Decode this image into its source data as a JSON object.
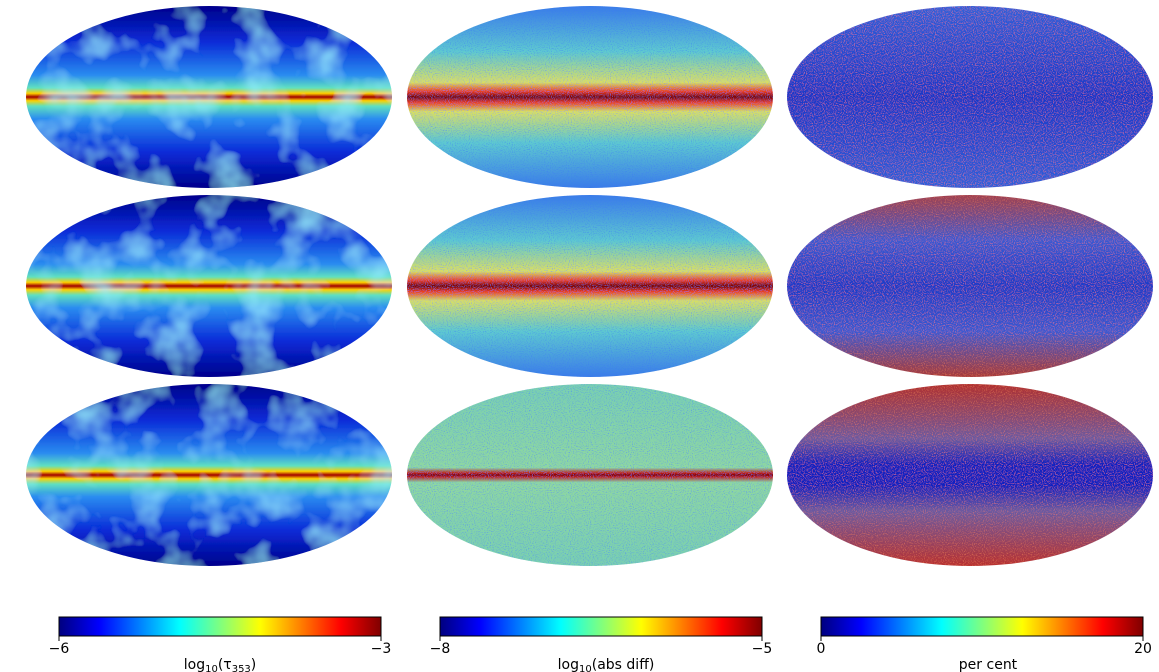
{
  "figure": {
    "columns": [
      {
        "name": "optical-depth",
        "colorbar": {
          "min_label": "−6",
          "max_label": "−3",
          "label_main": "log",
          "label_sub": "10",
          "label_rest": "(τ",
          "label_sub2": "353",
          "label_end": ")"
        }
      },
      {
        "name": "abs-diff",
        "colorbar": {
          "min_label": "−8",
          "max_label": "−5",
          "label_main": "log",
          "label_sub": "10",
          "label_rest": "(abs diff)"
        }
      },
      {
        "name": "percent",
        "colorbar": {
          "min_label": "0",
          "max_label": "20",
          "label_main": "per cent"
        }
      }
    ],
    "rows": 3,
    "colormap": "jet"
  }
}
